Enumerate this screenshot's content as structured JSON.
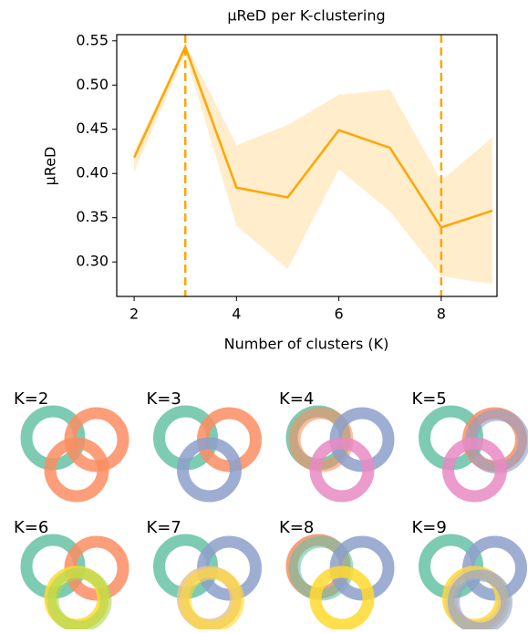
{
  "chart_data": {
    "type": "line",
    "title": "μReD per K-clustering",
    "xlabel": "Number of clusters (K)",
    "ylabel": "μReD",
    "x": [
      2,
      3,
      4,
      5,
      6,
      7,
      8,
      9
    ],
    "series": [
      {
        "color": "#ffa500",
        "values": [
          0.418,
          0.543,
          0.384,
          0.373,
          0.449,
          0.429,
          0.339,
          0.358
        ],
        "band_upper": [
          0.425,
          0.547,
          0.432,
          0.455,
          0.489,
          0.495,
          0.392,
          0.441
        ],
        "band_lower": [
          0.402,
          0.535,
          0.341,
          0.292,
          0.405,
          0.357,
          0.284,
          0.275
        ]
      }
    ],
    "vlines": [
      3,
      8
    ],
    "xlim": [
      1.66,
      9.09
    ],
    "ylim": [
      0.261,
      0.557
    ],
    "xticks": [
      2,
      4,
      6,
      8
    ],
    "yticks": [
      {
        "value": 0.3,
        "label": "0.30"
      },
      0.35,
      {
        "value": 0.4,
        "label": "0.40"
      },
      0.45,
      {
        "value": 0.5,
        "label": "0.50"
      },
      0.55
    ]
  },
  "panels": {
    "labels": [
      "K=2",
      "K=3",
      "K=4",
      "K=5",
      "K=6",
      "K=7",
      "K=8",
      "K=9"
    ]
  }
}
